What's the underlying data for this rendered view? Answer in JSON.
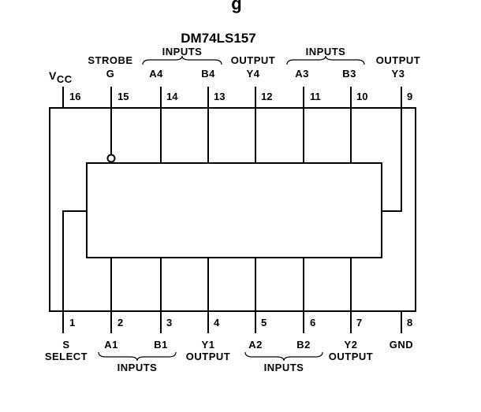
{
  "diagram": {
    "partial_header": "g",
    "title": "DM74LS157",
    "top_pins": [
      {
        "number": "16",
        "label": "V",
        "sub": "CC"
      },
      {
        "number": "15",
        "label_line1": "STROBE",
        "label_line2": "G"
      },
      {
        "number": "14",
        "label": "A4"
      },
      {
        "number": "13",
        "label": "B4"
      },
      {
        "number": "12",
        "label_line1": "OUTPUT",
        "label_line2": "Y4"
      },
      {
        "number": "11",
        "label": "A3"
      },
      {
        "number": "10",
        "label": "B3"
      },
      {
        "number": "9",
        "label_line1": "OUTPUT",
        "label_line2": "Y3"
      }
    ],
    "top_groups": [
      {
        "label": "INPUTS",
        "pins": [
          "14",
          "13"
        ]
      },
      {
        "label": "INPUTS",
        "pins": [
          "11",
          "10"
        ]
      }
    ],
    "bottom_pins": [
      {
        "number": "1",
        "label_line1": "S",
        "label_line2": "SELECT"
      },
      {
        "number": "2",
        "label": "A1"
      },
      {
        "number": "3",
        "label": "B1"
      },
      {
        "number": "4",
        "label_line1": "Y1",
        "label_line2": "OUTPUT"
      },
      {
        "number": "5",
        "label": "A2"
      },
      {
        "number": "6",
        "label": "B2"
      },
      {
        "number": "7",
        "label_line1": "Y2",
        "label_line2": "OUTPUT"
      },
      {
        "number": "8",
        "label": "GND"
      }
    ],
    "bottom_groups": [
      {
        "label": "INPUTS",
        "pins": [
          "2",
          "3"
        ]
      },
      {
        "label": "INPUTS",
        "pins": [
          "5",
          "6"
        ]
      }
    ]
  }
}
